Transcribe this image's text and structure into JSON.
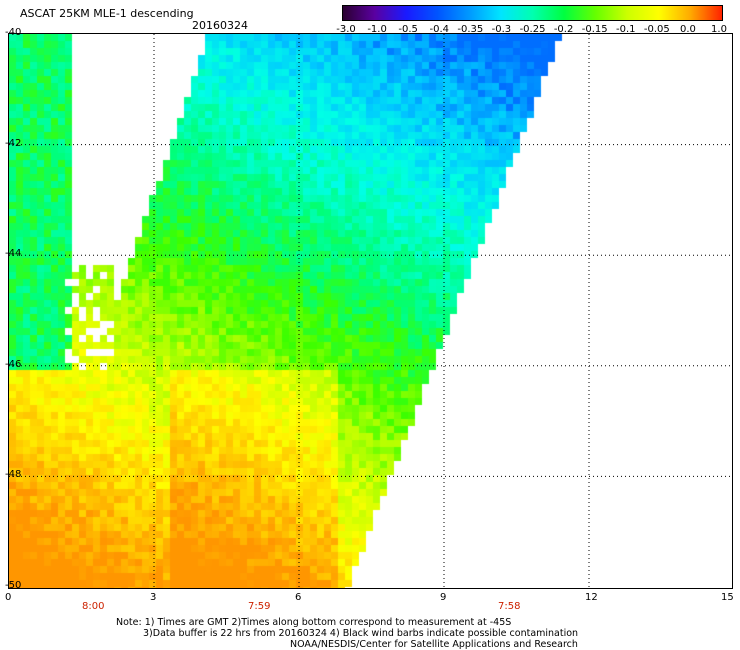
{
  "header": {
    "title": "ASCAT 25KM MLE-1 descending",
    "date": "20160324"
  },
  "colorbar": {
    "labels": [
      "-3.0",
      "-1.0",
      "-0.5",
      "-0.4",
      "-0.35",
      "-0.3",
      "-0.25",
      "-0.2",
      "-0.15",
      "-0.1",
      "-0.05",
      "0.0",
      "1.0"
    ],
    "colors": [
      "#2a0030",
      "#5a00a0",
      "#1a1aff",
      "#0055ff",
      "#0099ff",
      "#00e5ff",
      "#00ffb0",
      "#00ff40",
      "#66ff00",
      "#ccff00",
      "#ffff00",
      "#ffaa00",
      "#ff2200"
    ]
  },
  "map": {
    "x_ticks": [
      "0",
      "3",
      "6",
      "9",
      "12",
      "15"
    ],
    "y_ticks": [
      "-40",
      "-42",
      "-44",
      "-46",
      "-48",
      "-50"
    ],
    "x_range": [
      0,
      15
    ],
    "y_range": [
      -50,
      -40
    ],
    "grid": true,
    "times": [
      "8:00",
      "7:59",
      "7:58"
    ]
  },
  "notes": {
    "line1": "Note: 1) Times are GMT 2)Times along bottom correspond to measurement at -45S",
    "line2": "3)Data buffer is 22 hrs from 20160324 4) Black wind barbs indicate possible contamination",
    "line3": "NOAA/NESDIS/Center for Satellite Applications and Research"
  }
}
